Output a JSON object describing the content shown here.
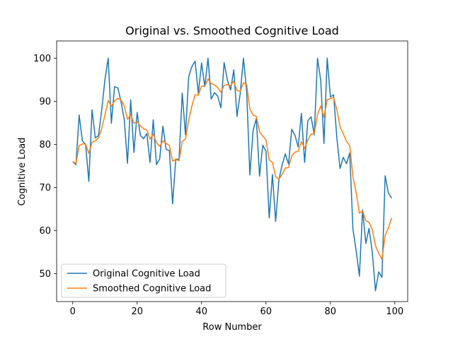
{
  "chart_data": {
    "type": "line",
    "title": "Original vs. Smoothed Cognitive Load",
    "xlabel": "Row Number",
    "ylabel": "Cognitive Load",
    "xlim": [
      -5,
      104
    ],
    "ylim": [
      43.5,
      104
    ],
    "xticks": [
      0,
      20,
      40,
      60,
      80,
      100
    ],
    "yticks": [
      50,
      60,
      70,
      80,
      90,
      100
    ],
    "grid": false,
    "legend_position": "lower-left",
    "series": [
      {
        "name": "Original Cognitive Load",
        "color": "#1f77b4",
        "x": [
          0,
          1,
          2,
          3,
          4,
          5,
          6,
          7,
          8,
          9,
          10,
          11,
          12,
          13,
          14,
          15,
          16,
          17,
          18,
          19,
          20,
          21,
          22,
          23,
          24,
          25,
          26,
          27,
          28,
          29,
          30,
          31,
          32,
          33,
          34,
          35,
          36,
          37,
          38,
          39,
          40,
          41,
          42,
          43,
          44,
          45,
          46,
          47,
          48,
          49,
          50,
          51,
          52,
          53,
          54,
          55,
          56,
          57,
          58,
          59,
          60,
          61,
          62,
          63,
          64,
          65,
          66,
          67,
          68,
          69,
          70,
          71,
          72,
          73,
          74,
          75,
          76,
          77,
          78,
          79,
          80,
          81,
          82,
          83,
          84,
          85,
          86,
          87,
          88,
          89,
          90,
          91,
          92,
          93,
          94,
          95,
          96,
          97,
          98,
          99
        ],
        "values": [
          76,
          75.3,
          86.8,
          80.8,
          80,
          71.4,
          88,
          81.5,
          82,
          88,
          95,
          100,
          84.9,
          93.4,
          93.1,
          89.9,
          85.7,
          75.6,
          90.3,
          78.1,
          87.4,
          82.1,
          81.3,
          82.5,
          75.8,
          85.7,
          75.3,
          76.6,
          84.2,
          78.8,
          78.6,
          66.2,
          76.6,
          76.5,
          91.9,
          82.2,
          95.7,
          98.1,
          99.3,
          91.8,
          98.9,
          93.4,
          100,
          90.5,
          92,
          91.2,
          88.5,
          99,
          95,
          92.6,
          97.3,
          86.5,
          91.8,
          100,
          92.3,
          72.9,
          83.2,
          86,
          72.6,
          79.8,
          78.4,
          62.9,
          73,
          62.1,
          71.7,
          75.2,
          77.8,
          75.4,
          83.5,
          82.1,
          79.4,
          87.2,
          75.8,
          85.5,
          86.4,
          82.2,
          100,
          94.8,
          80.2,
          100,
          91,
          91.5,
          81.5,
          74.4,
          77,
          75.5,
          78,
          60.3,
          55.3,
          49.4,
          64.8,
          57,
          60.5,
          55,
          46,
          50.4,
          49.1,
          72.7,
          68.7,
          67.5
        ]
      },
      {
        "name": "Smoothed Cognitive Load",
        "color": "#ff7f0e",
        "x": [
          0,
          1,
          2,
          3,
          4,
          5,
          6,
          7,
          8,
          9,
          10,
          11,
          12,
          13,
          14,
          15,
          16,
          17,
          18,
          19,
          20,
          21,
          22,
          23,
          24,
          25,
          26,
          27,
          28,
          29,
          30,
          31,
          32,
          33,
          34,
          35,
          36,
          37,
          38,
          39,
          40,
          41,
          42,
          43,
          44,
          45,
          46,
          47,
          48,
          49,
          50,
          51,
          52,
          53,
          54,
          55,
          56,
          57,
          58,
          59,
          60,
          61,
          62,
          63,
          64,
          65,
          66,
          67,
          68,
          69,
          70,
          71,
          72,
          73,
          74,
          75,
          76,
          77,
          78,
          79,
          80,
          81,
          82,
          83,
          84,
          85,
          86,
          87,
          88,
          89,
          90,
          91,
          92,
          93,
          94,
          95,
          96,
          97,
          98,
          99
        ],
        "values": [
          76,
          75.6,
          79.7,
          80.1,
          80.1,
          77.9,
          80.5,
          80.8,
          81.5,
          83.7,
          86.8,
          90.2,
          88.8,
          90.1,
          90.7,
          90.3,
          88.9,
          85.8,
          86.9,
          84.9,
          85.3,
          84.3,
          83.6,
          83.3,
          81.2,
          82.4,
          80.4,
          79.5,
          80.8,
          80.2,
          79.8,
          76.1,
          76.5,
          76.2,
          80.7,
          81.2,
          85.6,
          88.9,
          91.5,
          91.4,
          93.5,
          93.5,
          95.2,
          94.1,
          93.8,
          93.2,
          92.1,
          93.7,
          93.9,
          93.6,
          94.7,
          92.5,
          92.3,
          94.3,
          93.9,
          88.2,
          86.8,
          86.5,
          82.9,
          81.9,
          81.1,
          76.4,
          75.8,
          72.5,
          71.9,
          73,
          74.5,
          74.6,
          77.3,
          78.2,
          78.4,
          80.6,
          79.1,
          81,
          82.4,
          82.5,
          86.9,
          88.9,
          86.3,
          90.4,
          90.6,
          90.9,
          88.1,
          84.1,
          82.4,
          80.7,
          79.7,
          72.5,
          68.8,
          64,
          64.6,
          62.3,
          61.9,
          60.2,
          56.5,
          54.7,
          53.3,
          58.8,
          60.6,
          62.9
        ]
      }
    ]
  }
}
